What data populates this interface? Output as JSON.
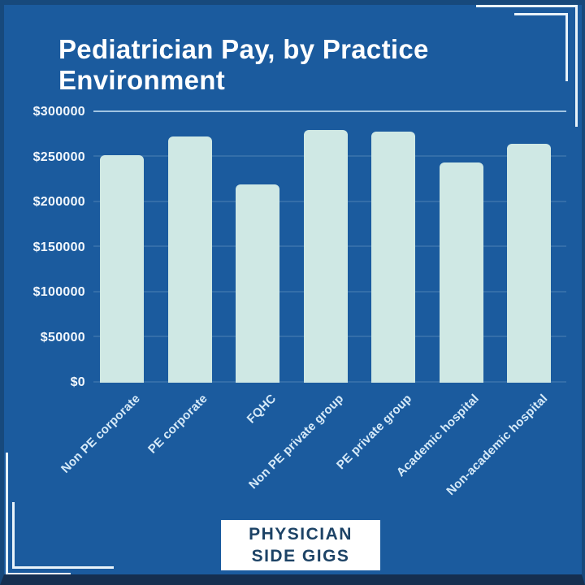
{
  "header": {
    "title": "Pediatrician Pay, by Practice Environment",
    "title_lines": [
      "Pediatrician Pay, by Practice",
      "Environment"
    ]
  },
  "chart_data": {
    "type": "bar",
    "title": "Pediatrician Pay, by Practice Environment",
    "categories": [
      "Non PE corporate",
      "PE corporate",
      "FQHC",
      "Non PE private group",
      "PE private group",
      "Academic hospital",
      "Non-academic hospital"
    ],
    "values": [
      252000,
      273000,
      220000,
      280000,
      278000,
      244000,
      265000
    ],
    "y_tick_labels": [
      "$0",
      "$50000",
      "$100000",
      "$150000",
      "$200000",
      "$250000",
      "$300000"
    ],
    "ylim": [
      0,
      300000
    ],
    "xlabel": "",
    "ylabel": "",
    "grid": "horizontal-faint-top-line-strong",
    "legend": "none",
    "x_tick_rotation_deg": 45
  },
  "logo": {
    "line1": "PHYSICIAN",
    "line2": "SIDE GIGS"
  },
  "colors": {
    "background": "#1b5b9e",
    "frame": "#17497c",
    "frame_bottom": "#152f50",
    "bar": "#cfe8e4",
    "title_text": "#ffffff",
    "axis_text": "#f2f7fc",
    "xtick_text": "#d6eaf8",
    "grid_strong": "#c3def2",
    "bracket": "#e9f3fa",
    "logo_bg": "#ffffff",
    "logo_text": "#1d4366"
  }
}
